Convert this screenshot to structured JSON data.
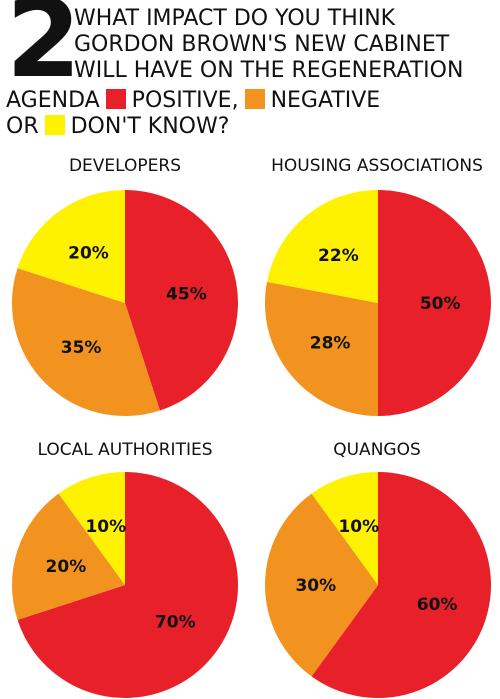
{
  "header": {
    "number": "2",
    "line1": "WHAT IMPACT DO YOU THINK",
    "line2": "GORDON BROWN'S NEW CABINET",
    "line3": "WILL HAVE ON THE REGENERATION",
    "line4_a": "AGENDA",
    "positive_label": "POSITIVE,",
    "negative_label": "NEGATIVE",
    "line5_a": "OR",
    "dontknow_label": "DON'T KNOW?"
  },
  "colors": {
    "positive": "#e8202a",
    "negative": "#f3931f",
    "dont_know": "#fff200"
  },
  "chart_data": [
    {
      "type": "pie",
      "title": "DEVELOPERS",
      "categories": [
        "POSITIVE",
        "NEGATIVE",
        "DON'T KNOW"
      ],
      "values": [
        45,
        35,
        20
      ],
      "labels": [
        "45%",
        "35%",
        "20%"
      ]
    },
    {
      "type": "pie",
      "title": "HOUSING ASSOCIATIONS",
      "categories": [
        "POSITIVE",
        "NEGATIVE",
        "DON'T KNOW"
      ],
      "values": [
        50,
        28,
        22
      ],
      "labels": [
        "50%",
        "28%",
        "22%"
      ]
    },
    {
      "type": "pie",
      "title": "LOCAL AUTHORITIES",
      "categories": [
        "POSITIVE",
        "NEGATIVE",
        "DON'T KNOW"
      ],
      "values": [
        70,
        20,
        10
      ],
      "labels": [
        "70%",
        "20%",
        "10%"
      ]
    },
    {
      "type": "pie",
      "title": "QUANGOS",
      "categories": [
        "POSITIVE",
        "NEGATIVE",
        "DON'T KNOW"
      ],
      "values": [
        60,
        30,
        10
      ],
      "labels": [
        "60%",
        "30%",
        "10%"
      ]
    }
  ]
}
